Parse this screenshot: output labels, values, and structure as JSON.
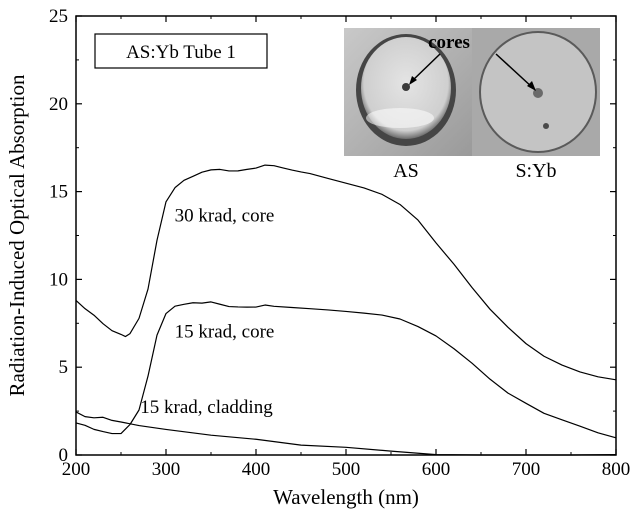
{
  "chart_data": {
    "type": "line",
    "xlabel": "Wavelength (nm)",
    "ylabel": "Radiation-Induced Optical Absorption",
    "xlim": [
      200,
      800
    ],
    "ylim": [
      0,
      25
    ],
    "xticks": [
      200,
      300,
      400,
      500,
      600,
      700,
      800
    ],
    "yticks": [
      0,
      5,
      10,
      15,
      20,
      25
    ],
    "grid": false,
    "legend_box": "AS:Yb Tube 1",
    "series": [
      {
        "name": "30 krad, core",
        "x": [
          200,
          210,
          220,
          230,
          240,
          250,
          255,
          260,
          270,
          280,
          290,
          300,
          310,
          320,
          330,
          340,
          350,
          360,
          370,
          380,
          390,
          400,
          410,
          420,
          430,
          440,
          450,
          460,
          480,
          500,
          520,
          540,
          560,
          580,
          600,
          620,
          640,
          660,
          680,
          700,
          720,
          740,
          760,
          780,
          800
        ],
        "y": [
          8.8,
          8.3,
          7.9,
          7.4,
          7.0,
          6.8,
          6.7,
          6.9,
          7.8,
          9.5,
          12.3,
          14.5,
          15.3,
          15.7,
          15.9,
          16.1,
          16.2,
          16.2,
          16.1,
          16.1,
          16.2,
          16.3,
          16.5,
          16.5,
          16.4,
          16.3,
          16.2,
          16.1,
          15.8,
          15.5,
          15.2,
          14.8,
          14.2,
          13.3,
          12.0,
          10.8,
          9.5,
          8.3,
          7.3,
          6.4,
          5.7,
          5.2,
          4.8,
          4.5,
          4.3
        ]
      },
      {
        "name": "15 krad, core",
        "x": [
          200,
          210,
          220,
          230,
          240,
          250,
          260,
          270,
          280,
          290,
          300,
          310,
          320,
          330,
          340,
          350,
          360,
          370,
          380,
          390,
          400,
          410,
          420,
          440,
          460,
          480,
          500,
          520,
          540,
          560,
          580,
          600,
          620,
          640,
          660,
          680,
          700,
          720,
          740,
          760,
          780,
          800
        ],
        "y": [
          1.8,
          1.7,
          1.5,
          1.4,
          1.3,
          1.3,
          1.8,
          2.6,
          4.5,
          6.8,
          8.0,
          8.4,
          8.5,
          8.6,
          8.6,
          8.7,
          8.6,
          8.5,
          8.5,
          8.5,
          8.5,
          8.6,
          8.5,
          8.4,
          8.3,
          8.2,
          8.1,
          8.0,
          7.9,
          7.7,
          7.3,
          6.8,
          6.1,
          5.3,
          4.4,
          3.6,
          3.0,
          2.4,
          2.0,
          1.6,
          1.2,
          0.9
        ]
      },
      {
        "name": "15 krad, cladding",
        "x": [
          200,
          210,
          220,
          230,
          240,
          250,
          270,
          300,
          350,
          400,
          450,
          500,
          550,
          600,
          650,
          700,
          750,
          800
        ],
        "y": [
          2.5,
          2.2,
          2.1,
          2.1,
          1.9,
          1.8,
          1.6,
          1.4,
          1.1,
          0.9,
          0.6,
          0.5,
          0.3,
          0.1,
          0.0,
          0.0,
          0.0,
          0.0
        ]
      }
    ],
    "annotations": [
      {
        "text": "30 krad, core",
        "x": 365,
        "y": 13.3
      },
      {
        "text": "15 krad, core",
        "x": 365,
        "y": 6.7
      },
      {
        "text": "15 krad, cladding",
        "x": 345,
        "y": 2.4
      }
    ],
    "inset": {
      "labels": [
        "AS",
        "S:Yb"
      ],
      "callout": "cores"
    }
  }
}
